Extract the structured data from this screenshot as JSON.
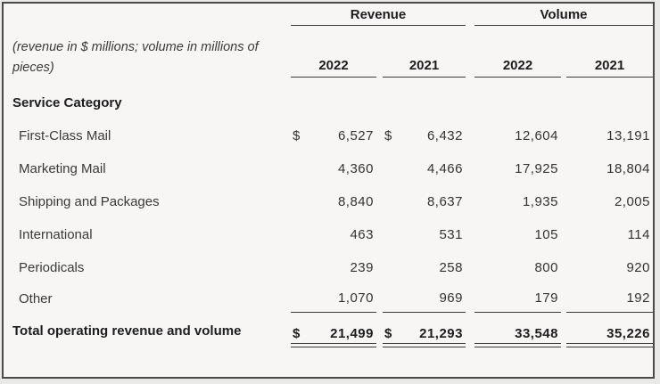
{
  "table": {
    "dollar": "$",
    "note": "(revenue in $ millions; volume in millions of pieces)",
    "groups": {
      "revenue": "Revenue",
      "volume": "Volume"
    },
    "year_headers": [
      "2022",
      "2021",
      "2022",
      "2021"
    ],
    "section_header": "Service Category",
    "rows": [
      {
        "label": "First-Class Mail",
        "values": [
          "6,527",
          "6,432",
          "12,604",
          "13,191"
        ]
      },
      {
        "label": "Marketing Mail",
        "values": [
          "4,360",
          "4,466",
          "17,925",
          "18,804"
        ]
      },
      {
        "label": "Shipping and Packages",
        "values": [
          "8,840",
          "8,637",
          "1,935",
          "2,005"
        ]
      },
      {
        "label": "International",
        "values": [
          "463",
          "531",
          "105",
          "114"
        ]
      },
      {
        "label": "Periodicals",
        "values": [
          "239",
          "258",
          "800",
          "920"
        ]
      },
      {
        "label": "Other",
        "values": [
          "1,070",
          "969",
          "179",
          "192"
        ]
      }
    ],
    "total_row": {
      "label": "Total operating revenue and volume",
      "values": [
        "21,499",
        "21,293",
        "33,548",
        "35,226"
      ]
    },
    "colors": {
      "panel_background": "#f7f6f4",
      "page_background": "#e9e9e7",
      "border": "#4a4a48",
      "rule": "#3b3b3b",
      "text": "#3a3a3a",
      "heading_text": "#1d1d1f"
    }
  }
}
